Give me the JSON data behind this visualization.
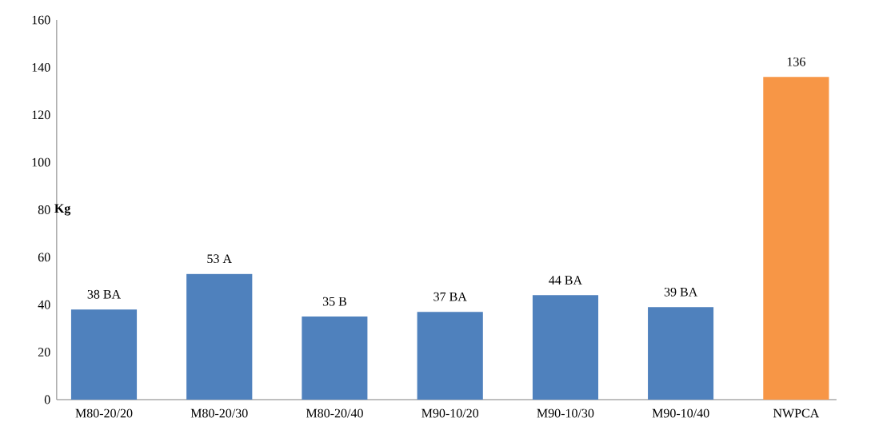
{
  "chart_data": {
    "type": "bar",
    "ylabel": "Kg",
    "categories": [
      "M80-20/20",
      "M80-20/30",
      "M80-20/40",
      "M90-10/20",
      "M90-10/30",
      "M90-10/40",
      "NWPCA"
    ],
    "values": [
      38,
      53,
      35,
      37,
      44,
      39,
      136
    ],
    "colors": [
      "#4f81bd",
      "#4f81bd",
      "#4f81bd",
      "#4f81bd",
      "#4f81bd",
      "#4f81bd",
      "#f79646"
    ],
    "value_labels": [
      "38 BA",
      "53 A",
      "35 B",
      "37 BA",
      "44 BA",
      "39 BA",
      "136"
    ],
    "ylim": [
      0,
      160
    ],
    "yticks": [
      0,
      20,
      40,
      60,
      80,
      100,
      120,
      140,
      160
    ]
  }
}
